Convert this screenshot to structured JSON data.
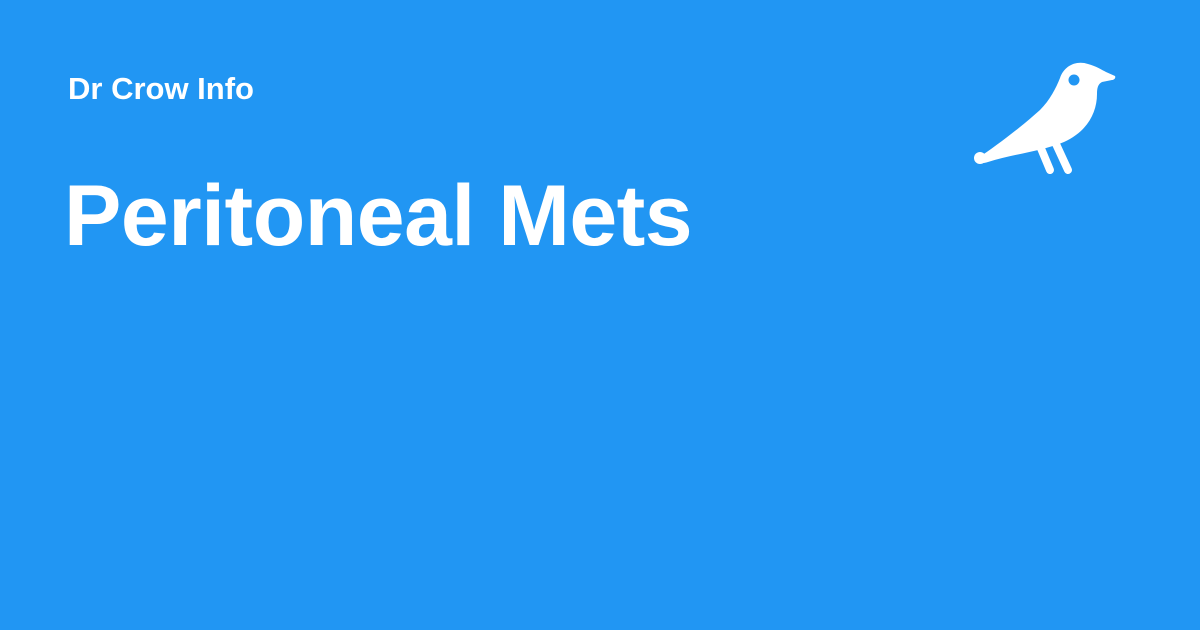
{
  "brand": {
    "site_name": "Dr Crow Info",
    "logo_icon": "crow-icon"
  },
  "main": {
    "title": "Peritoneal Mets"
  },
  "colors": {
    "background": "#2196F3",
    "text": "#FFFFFF"
  }
}
